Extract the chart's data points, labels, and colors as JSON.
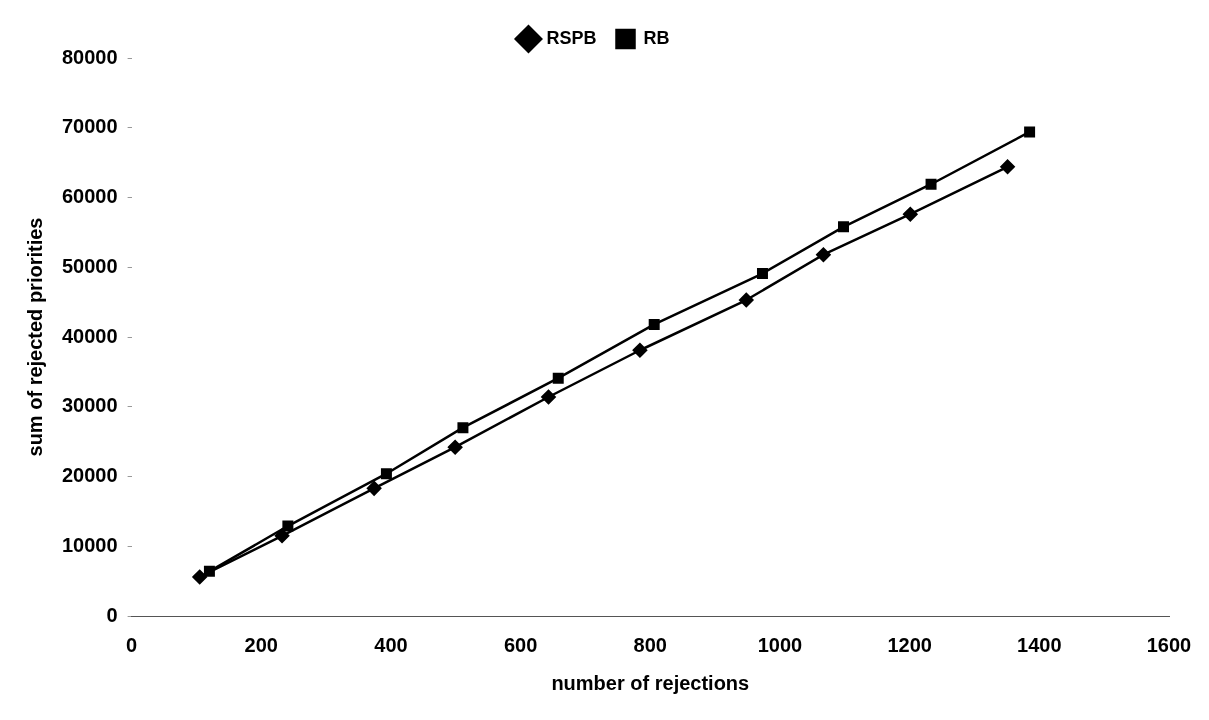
{
  "chart_data": {
    "type": "line",
    "xlabel": "number of rejections",
    "ylabel": "sum of rejected priorities",
    "xlim": [
      0,
      1600
    ],
    "xticks": [
      0,
      200,
      400,
      600,
      800,
      1000,
      1200,
      1400,
      1600
    ],
    "ylim": [
      0,
      80000
    ],
    "yticks": [
      0,
      10000,
      20000,
      30000,
      40000,
      50000,
      60000,
      70000,
      80000
    ],
    "legend": "top",
    "grid": false,
    "series": [
      {
        "name": "RSPB",
        "color": "#000000",
        "marker": "diamond",
        "x": [
          105,
          232,
          374,
          499,
          643,
          784,
          948,
          1067,
          1201,
          1351
        ],
        "values": [
          5600,
          11500,
          18300,
          24200,
          31400,
          38100,
          45300,
          51800,
          57600,
          64400
        ]
      },
      {
        "name": "RB",
        "color": "#000000",
        "marker": "square",
        "x": [
          120,
          241,
          393,
          511,
          658,
          806,
          973,
          1098,
          1233,
          1385
        ],
        "values": [
          6400,
          12900,
          20400,
          27000,
          34100,
          41800,
          49100,
          55800,
          61900,
          69400
        ]
      }
    ]
  }
}
